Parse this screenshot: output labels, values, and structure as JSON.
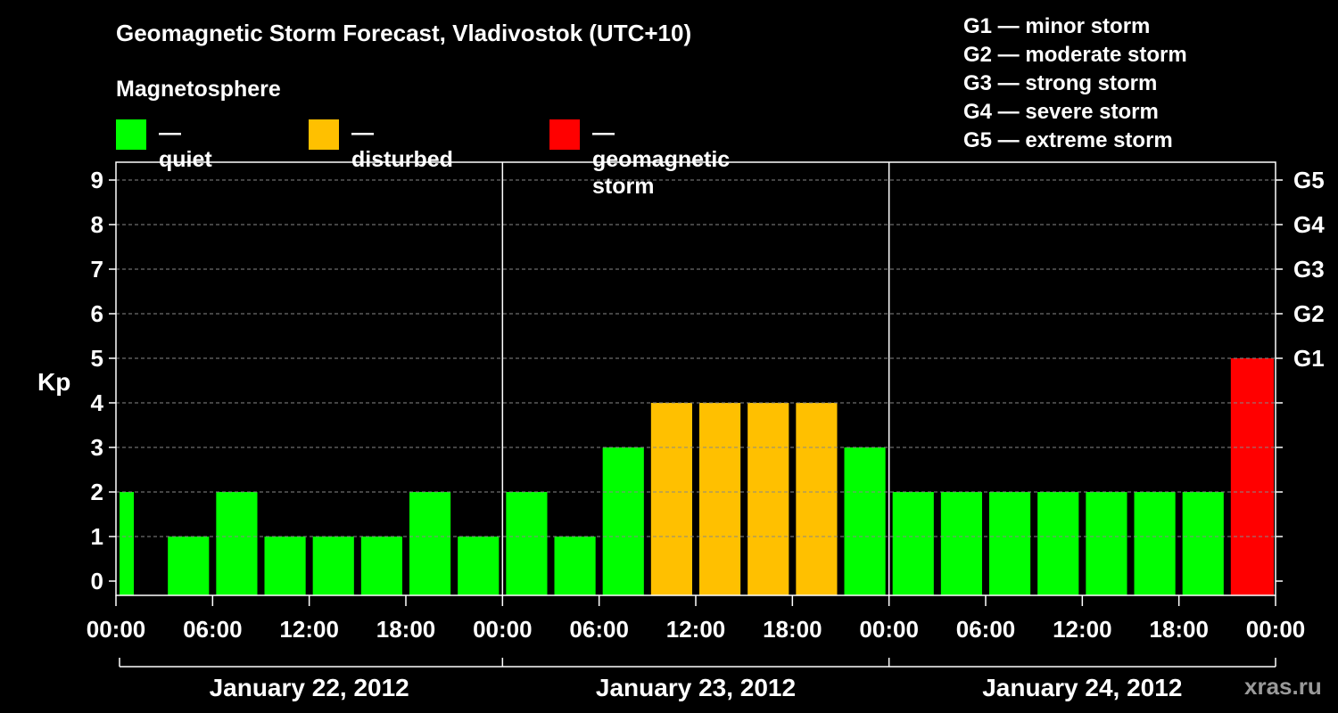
{
  "title": "Geomagnetic Storm Forecast, Vladivostok (UTC+10)",
  "magnetosphere_label": "Magnetosphere",
  "legend": [
    {
      "label": "— quiet",
      "color": "#00ff00"
    },
    {
      "label": "— disturbed",
      "color": "#ffc000"
    },
    {
      "label": "— geomagnetic storm",
      "color": "#ff0000"
    }
  ],
  "storm_levels": [
    "G1 — minor storm",
    "G2 — moderate storm",
    "G3 — strong storm",
    "G4 — severe storm",
    "G5 — extreme storm"
  ],
  "watermark": "xras.ru",
  "chart_data": {
    "type": "bar",
    "ylabel": "Kp",
    "ylim": [
      0,
      9
    ],
    "y_ticks": [
      0,
      1,
      2,
      3,
      4,
      5,
      6,
      7,
      8,
      9
    ],
    "right_axis_labels": [
      {
        "kp": 5,
        "label": "G1"
      },
      {
        "kp": 6,
        "label": "G2"
      },
      {
        "kp": 7,
        "label": "G3"
      },
      {
        "kp": 8,
        "label": "G4"
      },
      {
        "kp": 9,
        "label": "G5"
      }
    ],
    "x_tick_labels": [
      "00:00",
      "06:00",
      "12:00",
      "18:00",
      "00:00",
      "06:00",
      "12:00",
      "18:00",
      "00:00",
      "06:00",
      "12:00",
      "18:00",
      "00:00"
    ],
    "days": [
      "January 22, 2012",
      "January 23, 2012",
      "January 24, 2012"
    ],
    "grid": "horizontal dashed",
    "values": [
      2,
      1,
      2,
      1,
      1,
      1,
      2,
      1,
      2,
      1,
      3,
      4,
      4,
      4,
      4,
      3,
      2,
      2,
      2,
      2,
      2,
      2,
      2,
      5
    ],
    "colors": {
      "quiet": "#00ff00",
      "disturbed": "#ffc000",
      "storm": "#ff0000"
    }
  }
}
